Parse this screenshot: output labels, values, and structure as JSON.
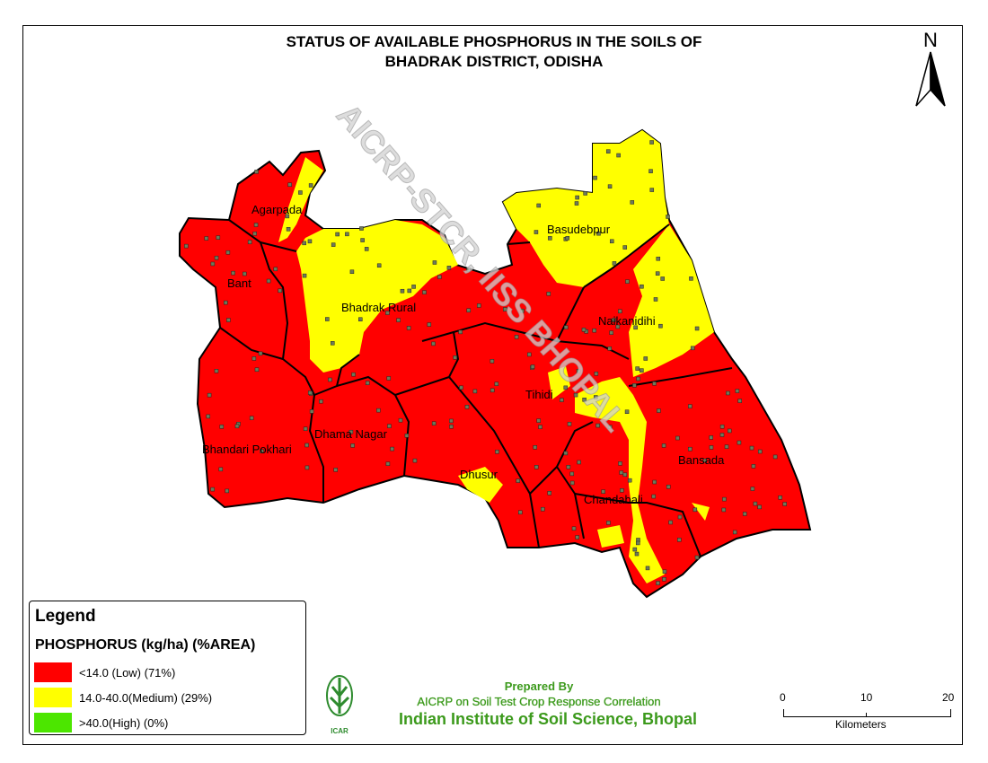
{
  "title": {
    "line1": "STATUS OF AVAILABLE PHOSPHORUS IN THE SOILS OF",
    "line2": "BHADRAK DISTRICT, ODISHA"
  },
  "north_arrow": {
    "label": "N"
  },
  "blocks": [
    {
      "name": "Agarpada",
      "label": "Agarpada"
    },
    {
      "name": "Basudebpur",
      "label": "Basudebpur"
    },
    {
      "name": "Bant",
      "label": "Bant"
    },
    {
      "name": "Bhadrak Rural",
      "label": "Bhadrak Rural"
    },
    {
      "name": "Naikanidihi",
      "label": "Naikanidihi"
    },
    {
      "name": "Tihidi",
      "label": "Tihidi"
    },
    {
      "name": "Dhama Nagar",
      "label": "Dhama Nagar"
    },
    {
      "name": "Bhandari Pokhari",
      "label": "Bhandari Pokhari"
    },
    {
      "name": "Bansada",
      "label": "Bansada"
    },
    {
      "name": "Dhusur",
      "label": "Dhusur"
    },
    {
      "name": "Chandabali",
      "label": "Chandabali"
    }
  ],
  "watermark": "AICRP-STCR, IISS BHOPAL",
  "legend": {
    "title": "Legend",
    "heading": "PHOSPHORUS (kg/ha) (%AREA)",
    "items": [
      {
        "label": "<14.0 (Low) (71%)",
        "color": "#ff0000",
        "class": "Low",
        "area_percent": 71
      },
      {
        "label": "14.0-40.0(Medium) (29%)",
        "color": "#ffff00",
        "class": "Medium",
        "area_percent": 29
      },
      {
        "label": ">40.0(High) (0%)",
        "color": "#4ce600",
        "class": "High",
        "area_percent": 0
      }
    ]
  },
  "credits": {
    "line1": "Prepared By",
    "line2": "AICRP on Soil Test Crop Response Correlation",
    "line3": "Indian Institute of Soil Science, Bhopal",
    "logo_text": "ICAR"
  },
  "scalebar": {
    "ticks": [
      "0",
      "10",
      "20"
    ],
    "unit": "Kilometers"
  },
  "colors": {
    "low": "#ff0000",
    "medium": "#ffff00",
    "high": "#4ce600",
    "credit_text": "#3c9a1c"
  }
}
